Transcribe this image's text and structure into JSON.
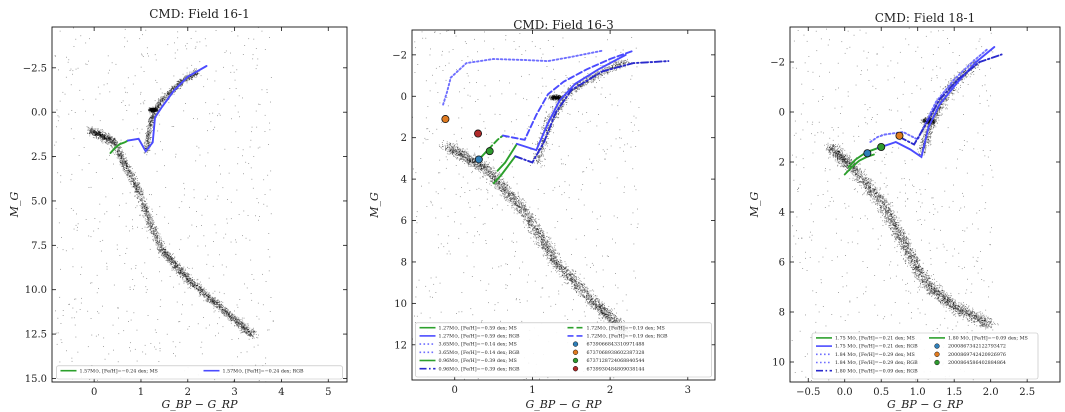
{
  "chart_data": [
    {
      "type": "scatter",
      "title": "CMD: Field 16-1",
      "xlabel": "G_BP − G_RP",
      "ylabel": "M_G",
      "xlim": [
        -0.9,
        5.4
      ],
      "ylim": [
        15.2,
        -4.8
      ],
      "y_inverted": true,
      "xticks": [
        "0",
        "1",
        "2",
        "3",
        "4",
        "5"
      ],
      "yticks": [
        "−2.5",
        "0.0",
        "2.5",
        "5.0",
        "7.5",
        "10.0",
        "12.5",
        "15.0"
      ],
      "legend_position": "lower center",
      "series": [
        {
          "name": "1.57M⊙, [Fe/H]=−0.24 dex; MS",
          "color": "#2ca02c",
          "style": "solid",
          "x": [
            0.35,
            0.45,
            0.55,
            0.65,
            0.72
          ],
          "y": [
            2.3,
            2.0,
            1.8,
            1.7,
            1.6
          ]
        },
        {
          "name": "1.57M⊙, [Fe/H]=−0.24 dex; RGB",
          "color": "#4b4bff",
          "style": "solid",
          "x": [
            0.72,
            0.95,
            1.1,
            1.25,
            1.3,
            1.45,
            1.7,
            2.0,
            2.4
          ],
          "y": [
            1.6,
            1.5,
            2.2,
            1.7,
            0.3,
            -0.3,
            -1.2,
            -2.0,
            -2.6
          ]
        }
      ]
    },
    {
      "type": "scatter",
      "title": "CMD: Field 16-3",
      "xlabel": "G_BP − G_RP",
      "ylabel": "M_G",
      "xlim": [
        -0.55,
        3.35
      ],
      "ylim": [
        13.7,
        -3.2
      ],
      "y_inverted": true,
      "xticks": [
        "0",
        "1",
        "2",
        "3"
      ],
      "yticks": [
        "−2",
        "0",
        "2",
        "4",
        "6",
        "8",
        "10",
        "12"
      ],
      "legend_position": "lower center",
      "series": [
        {
          "name": "1.27M⊙, [Fe/H]=−0.59 dex; MS",
          "color": "#2ca02c",
          "style": "solid",
          "x": [
            0.55,
            0.65,
            0.75,
            0.8
          ],
          "y": [
            3.6,
            3.2,
            2.6,
            2.3
          ]
        },
        {
          "name": "1.27M⊙, [Fe/H]=−0.59 dex; RGB",
          "color": "#4b4bff",
          "style": "solid",
          "x": [
            0.8,
            1.05,
            1.2,
            1.35,
            1.55,
            1.85,
            2.2
          ],
          "y": [
            2.3,
            2.6,
            1.3,
            0.2,
            -0.6,
            -1.3,
            -2.0
          ]
        },
        {
          "name": "3.65M⊙, [Fe/H]=−0.14 dex; MS",
          "color": "#6f6fff",
          "style": "dotted",
          "x": [
            -0.15,
            -0.1,
            -0.05
          ],
          "y": [
            0.4,
            -0.2,
            -0.9
          ]
        },
        {
          "name": "3.65M⊙, [Fe/H]=−0.14 dex; RGB",
          "color": "#6f6fff",
          "style": "dotted",
          "x": [
            -0.05,
            0.15,
            0.5,
            0.9,
            1.2,
            1.5,
            1.9
          ],
          "y": [
            -0.9,
            -1.6,
            -1.8,
            -1.75,
            -1.7,
            -1.9,
            -2.2
          ]
        },
        {
          "name": "0.96M⊙, [Fe/H]=−0.39 dex; MS",
          "color": "#2ca02c",
          "style": "solid",
          "x": [
            0.5,
            0.6,
            0.7,
            0.78
          ],
          "y": [
            4.2,
            3.8,
            3.3,
            2.9
          ]
        },
        {
          "name": "0.96M⊙, [Fe/H]=−0.39 dex; RGB",
          "color": "#2a2acc",
          "style": "dashdot",
          "x": [
            0.78,
            1.0,
            1.15,
            1.3,
            1.5,
            1.9,
            2.3,
            2.75
          ],
          "y": [
            2.9,
            3.2,
            2.2,
            0.8,
            -0.3,
            -1.2,
            -1.6,
            -1.7
          ]
        },
        {
          "name": "1.72M⊙, [Fe/H]=−0.19 dex; MS",
          "color": "#2ca02c",
          "style": "dashed",
          "x": [
            0.35,
            0.45,
            0.55,
            0.62
          ],
          "y": [
            2.9,
            2.5,
            2.1,
            1.9
          ]
        },
        {
          "name": "1.72M⊙, [Fe/H]=−0.19 dex; RGB",
          "color": "#4b4bff",
          "style": "dashed",
          "x": [
            0.62,
            0.9,
            1.05,
            1.2,
            1.4,
            1.7,
            2.0,
            2.3
          ],
          "y": [
            1.9,
            2.1,
            0.9,
            -0.1,
            -0.7,
            -1.3,
            -1.8,
            -2.2
          ]
        }
      ],
      "points": [
        {
          "name": "6739066843310971488",
          "x": 0.31,
          "y": 3.05,
          "color": "#2f7fb8"
        },
        {
          "name": "6737068938602387328",
          "x": -0.12,
          "y": 1.1,
          "color": "#e07b20"
        },
        {
          "name": "6737128724068840544",
          "x": 0.45,
          "y": 2.65,
          "color": "#2e9a2e"
        },
        {
          "name": "6739930484809038144",
          "x": 0.3,
          "y": 1.8,
          "color": "#b02a2a"
        }
      ]
    },
    {
      "type": "scatter",
      "title": "CMD: Field 18-1",
      "xlabel": "G_BP − G_RP",
      "ylabel": "M_G",
      "xlim": [
        -0.75,
        2.95
      ],
      "ylim": [
        10.8,
        -3.4
      ],
      "y_inverted": true,
      "xticks": [
        "−0.5",
        "0.0",
        "0.5",
        "1.0",
        "1.5",
        "2.0",
        "2.5"
      ],
      "yticks": [
        "−2",
        "0",
        "2",
        "4",
        "6",
        "8",
        "10"
      ],
      "legend_position": "lower center",
      "series": [
        {
          "name": "1.75 M⊙, [Fe/H]=−0.21 dex; MS",
          "color": "#2ca02c",
          "style": "solid",
          "x": [
            0.05,
            0.15,
            0.25,
            0.35,
            0.45
          ],
          "y": [
            2.2,
            1.9,
            1.7,
            1.55,
            1.45
          ]
        },
        {
          "name": "1.75 M⊙, [Fe/H]=−0.21 dex; RGB",
          "color": "#4b4bff",
          "style": "solid",
          "x": [
            0.45,
            0.7,
            0.9,
            1.05,
            1.15,
            1.3,
            1.55,
            1.8,
            2.05
          ],
          "y": [
            1.45,
            1.2,
            1.5,
            1.8,
            0.6,
            -0.3,
            -1.2,
            -2.0,
            -2.6
          ]
        },
        {
          "name": "1.84 M⊙, [Fe/H]=−0.29 dex; MS",
          "color": "#6f6fff",
          "style": "dotted",
          "x": [
            0.35,
            0.45,
            0.55
          ],
          "y": [
            1.2,
            1.0,
            0.9
          ]
        },
        {
          "name": "1.84 M⊙, [Fe/H]=−0.29 dex; RGB",
          "color": "#6f6fff",
          "style": "dotted",
          "x": [
            0.55,
            0.8,
            1.0,
            1.1,
            1.25,
            1.5,
            1.75,
            1.95
          ],
          "y": [
            0.9,
            0.8,
            1.1,
            0.5,
            -0.4,
            -1.3,
            -2.0,
            -2.5
          ]
        },
        {
          "name": "1.80 M⊙, [Fe/H]=−0.09 dex; RGB",
          "color": "#2a2acc",
          "style": "dashdot",
          "x": [
            0.75,
            0.95,
            1.15,
            1.3,
            1.55,
            1.85,
            2.15
          ],
          "y": [
            1.0,
            1.3,
            0.3,
            -0.5,
            -1.3,
            -2.0,
            -2.3
          ]
        },
        {
          "name": "1.80 M⊙, [Fe/H]=−0.09 dex; MS",
          "color": "#2ca02c",
          "style": "solid",
          "x": [
            0.0,
            0.1,
            0.2,
            0.3,
            0.4
          ],
          "y": [
            2.5,
            2.2,
            1.95,
            1.8,
            1.7
          ]
        }
      ],
      "points": [
        {
          "name": "2000867342122793472",
          "x": 0.31,
          "y": 1.65,
          "color": "#2f7fb8"
        },
        {
          "name": "2000869742420926976",
          "x": 0.75,
          "y": 0.95,
          "color": "#e07b20"
        },
        {
          "name": "2000864586402884864",
          "x": 0.5,
          "y": 1.4,
          "color": "#2e9a2e"
        }
      ]
    }
  ]
}
